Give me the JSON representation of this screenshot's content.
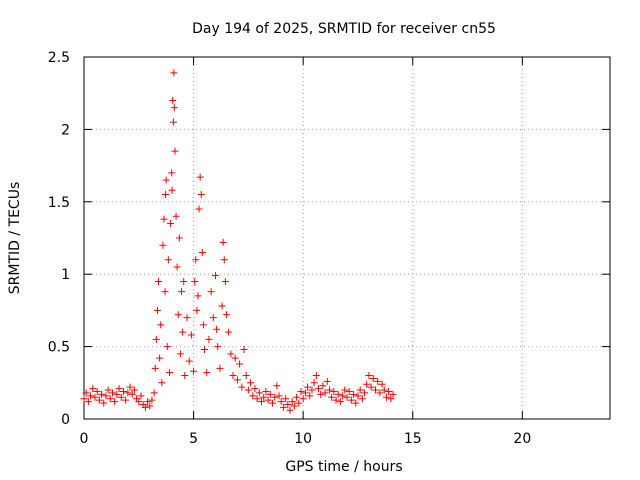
{
  "chart_data": {
    "type": "scatter",
    "title": "Day 194 of 2025, SRMTID for receiver cn55",
    "xlabel": "GPS time / hours",
    "ylabel": "SRMTID / TECUs",
    "xlim": [
      0,
      24
    ],
    "ylim": [
      0,
      2.5
    ],
    "x_ticks": [
      0,
      5,
      10,
      15,
      20
    ],
    "x_tick_labels": [
      "0",
      "5",
      "10",
      "15",
      "20"
    ],
    "y_ticks": [
      0,
      0.5,
      1,
      1.5,
      2,
      2.5
    ],
    "y_tick_labels": [
      "0",
      "0.5",
      "1",
      "1.5",
      "2",
      "2.5"
    ],
    "grid": true,
    "marker": "+",
    "marker_color": "#ff0000",
    "series": [
      {
        "name": "SRMTID",
        "points": [
          [
            0.0,
            0.14
          ],
          [
            0.1,
            0.18
          ],
          [
            0.2,
            0.12
          ],
          [
            0.3,
            0.16
          ],
          [
            0.4,
            0.21
          ],
          [
            0.5,
            0.15
          ],
          [
            0.6,
            0.19
          ],
          [
            0.7,
            0.13
          ],
          [
            0.8,
            0.17
          ],
          [
            0.9,
            0.11
          ],
          [
            1.0,
            0.16
          ],
          [
            1.1,
            0.2
          ],
          [
            1.2,
            0.14
          ],
          [
            1.3,
            0.18
          ],
          [
            1.4,
            0.12
          ],
          [
            1.5,
            0.17
          ],
          [
            1.6,
            0.21
          ],
          [
            1.7,
            0.15
          ],
          [
            1.8,
            0.19
          ],
          [
            1.9,
            0.13
          ],
          [
            2.0,
            0.18
          ],
          [
            2.1,
            0.22
          ],
          [
            2.2,
            0.17
          ],
          [
            2.3,
            0.2
          ],
          [
            2.4,
            0.14
          ],
          [
            2.5,
            0.12
          ],
          [
            2.6,
            0.16
          ],
          [
            2.7,
            0.1
          ],
          [
            2.8,
            0.08
          ],
          [
            2.9,
            0.12
          ],
          [
            3.0,
            0.09
          ],
          [
            3.1,
            0.13
          ],
          [
            3.2,
            0.18
          ],
          [
            3.25,
            0.35
          ],
          [
            3.3,
            0.55
          ],
          [
            3.35,
            0.75
          ],
          [
            3.4,
            0.95
          ],
          [
            3.45,
            0.42
          ],
          [
            3.5,
            0.65
          ],
          [
            3.55,
            0.25
          ],
          [
            3.6,
            1.2
          ],
          [
            3.65,
            1.38
          ],
          [
            3.7,
            0.88
          ],
          [
            3.72,
            1.55
          ],
          [
            3.75,
            1.65
          ],
          [
            3.8,
            0.5
          ],
          [
            3.85,
            1.1
          ],
          [
            3.9,
            0.32
          ],
          [
            3.95,
            1.35
          ],
          [
            4.0,
            1.7
          ],
          [
            4.02,
            1.58
          ],
          [
            4.05,
            2.2
          ],
          [
            4.08,
            2.05
          ],
          [
            4.1,
            2.39
          ],
          [
            4.12,
            2.15
          ],
          [
            4.15,
            1.85
          ],
          [
            4.2,
            1.4
          ],
          [
            4.25,
            1.05
          ],
          [
            4.3,
            0.72
          ],
          [
            4.35,
            1.25
          ],
          [
            4.4,
            0.45
          ],
          [
            4.45,
            0.88
          ],
          [
            4.5,
            0.6
          ],
          [
            4.55,
            0.95
          ],
          [
            4.6,
            0.3
          ],
          [
            4.7,
            0.7
          ],
          [
            4.8,
            0.4
          ],
          [
            4.9,
            0.58
          ],
          [
            5.0,
            0.33
          ],
          [
            5.05,
            0.95
          ],
          [
            5.1,
            1.1
          ],
          [
            5.15,
            0.75
          ],
          [
            5.2,
            0.85
          ],
          [
            5.25,
            1.45
          ],
          [
            5.3,
            1.67
          ],
          [
            5.35,
            1.55
          ],
          [
            5.4,
            1.15
          ],
          [
            5.45,
            0.65
          ],
          [
            5.5,
            0.48
          ],
          [
            5.6,
            0.32
          ],
          [
            5.7,
            0.55
          ],
          [
            5.8,
            0.88
          ],
          [
            5.9,
            0.7
          ],
          [
            6.0,
            0.99
          ],
          [
            6.05,
            0.62
          ],
          [
            6.1,
            0.5
          ],
          [
            6.2,
            0.35
          ],
          [
            6.3,
            0.78
          ],
          [
            6.35,
            1.22
          ],
          [
            6.4,
            1.1
          ],
          [
            6.45,
            0.95
          ],
          [
            6.5,
            0.72
          ],
          [
            6.6,
            0.6
          ],
          [
            6.7,
            0.45
          ],
          [
            6.8,
            0.3
          ],
          [
            6.9,
            0.42
          ],
          [
            7.0,
            0.27
          ],
          [
            7.1,
            0.38
          ],
          [
            7.2,
            0.22
          ],
          [
            7.3,
            0.48
          ],
          [
            7.4,
            0.3
          ],
          [
            7.5,
            0.2
          ],
          [
            7.6,
            0.25
          ],
          [
            7.7,
            0.16
          ],
          [
            7.8,
            0.21
          ],
          [
            7.9,
            0.14
          ],
          [
            8.0,
            0.18
          ],
          [
            8.1,
            0.12
          ],
          [
            8.2,
            0.15
          ],
          [
            8.3,
            0.19
          ],
          [
            8.4,
            0.13
          ],
          [
            8.5,
            0.17
          ],
          [
            8.6,
            0.11
          ],
          [
            8.7,
            0.15
          ],
          [
            8.8,
            0.23
          ],
          [
            8.9,
            0.16
          ],
          [
            9.0,
            0.12
          ],
          [
            9.1,
            0.08
          ],
          [
            9.2,
            0.14
          ],
          [
            9.3,
            0.1
          ],
          [
            9.4,
            0.06
          ],
          [
            9.5,
            0.12
          ],
          [
            9.6,
            0.09
          ],
          [
            9.7,
            0.15
          ],
          [
            9.8,
            0.11
          ],
          [
            9.9,
            0.19
          ],
          [
            10.0,
            0.14
          ],
          [
            10.1,
            0.18
          ],
          [
            10.2,
            0.22
          ],
          [
            10.3,
            0.16
          ],
          [
            10.4,
            0.2
          ],
          [
            10.5,
            0.25
          ],
          [
            10.6,
            0.3
          ],
          [
            10.7,
            0.21
          ],
          [
            10.8,
            0.17
          ],
          [
            10.9,
            0.23
          ],
          [
            11.0,
            0.18
          ],
          [
            11.1,
            0.26
          ],
          [
            11.2,
            0.2
          ],
          [
            11.3,
            0.15
          ],
          [
            11.4,
            0.19
          ],
          [
            11.5,
            0.13
          ],
          [
            11.6,
            0.17
          ],
          [
            11.7,
            0.12
          ],
          [
            11.8,
            0.16
          ],
          [
            11.9,
            0.2
          ],
          [
            12.0,
            0.15
          ],
          [
            12.1,
            0.19
          ],
          [
            12.2,
            0.13
          ],
          [
            12.3,
            0.17
          ],
          [
            12.4,
            0.11
          ],
          [
            12.5,
            0.16
          ],
          [
            12.6,
            0.2
          ],
          [
            12.7,
            0.14
          ],
          [
            12.8,
            0.18
          ],
          [
            12.9,
            0.24
          ],
          [
            13.0,
            0.3
          ],
          [
            13.1,
            0.22
          ],
          [
            13.2,
            0.28
          ],
          [
            13.3,
            0.2
          ],
          [
            13.4,
            0.26
          ],
          [
            13.5,
            0.18
          ],
          [
            13.6,
            0.24
          ],
          [
            13.7,
            0.2
          ],
          [
            13.8,
            0.15
          ],
          [
            13.9,
            0.19
          ],
          [
            14.0,
            0.14
          ],
          [
            14.1,
            0.17
          ]
        ]
      }
    ]
  }
}
